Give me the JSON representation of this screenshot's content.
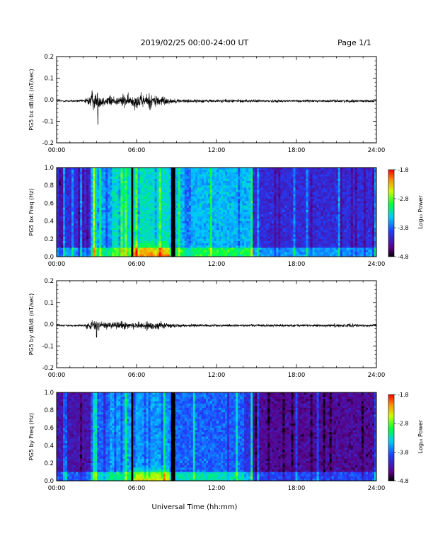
{
  "header": {
    "title": "2019/02/25  00:00-24:00 UT",
    "page": "Page 1/1"
  },
  "xaxis_title": "Universal Time (hh:mm)",
  "colorbar": {
    "label": "Log₁₀ Power",
    "ticks": [
      "-1.8",
      "-2.8",
      "-3.8",
      "-4.8"
    ]
  },
  "chart_data": [
    {
      "type": "line",
      "name": "bx_waveform",
      "ylabel": "PG5 bx dB/dt (nT/sec)",
      "xlim": [
        0,
        24
      ],
      "ylim": [
        -0.2,
        0.2
      ],
      "xticks": [
        "00:00",
        "06:00",
        "12:00",
        "18:00",
        "24:00"
      ],
      "yticks": [
        "0.2",
        "0.1",
        "0.0",
        "-0.1",
        "-0.2"
      ],
      "x_hours": [
        0,
        1,
        2,
        2.5,
        2.6,
        2.7,
        2.8,
        3.0,
        3.2,
        3.4,
        3.6,
        3.8,
        4.0,
        4.5,
        5.0,
        5.5,
        6.0,
        6.5,
        7.0,
        7.5,
        8.0,
        8.5,
        9,
        10,
        11,
        12,
        13,
        14,
        15,
        16,
        17,
        18,
        19,
        20,
        21,
        22,
        23,
        24
      ],
      "y_envelope": [
        0.004,
        0.005,
        0.006,
        0.03,
        0.055,
        0.06,
        0.035,
        0.05,
        0.03,
        0.035,
        0.02,
        0.025,
        0.03,
        0.02,
        0.035,
        0.025,
        0.04,
        0.03,
        0.04,
        0.03,
        0.025,
        0.012,
        0.01,
        0.008,
        0.008,
        0.007,
        0.008,
        0.007,
        0.007,
        0.006,
        0.006,
        0.006,
        0.006,
        0.006,
        0.006,
        0.007,
        0.006,
        0.005
      ],
      "notable_minimum": {
        "x_hours": 3.1,
        "y": -0.115
      }
    },
    {
      "type": "heatmap",
      "name": "bx_spectrogram",
      "ylabel": "PG5 bx Freq (Hz)",
      "xlim": [
        0,
        24
      ],
      "ylim": [
        0.0,
        1.0
      ],
      "xticks": [
        "00:00",
        "06:00",
        "12:00",
        "18:00",
        "24:00"
      ],
      "yticks": [
        "1.0",
        "0.8",
        "0.6",
        "0.4",
        "0.2",
        "0.0"
      ],
      "zlim": [
        -4.8,
        -1.8
      ],
      "data_gaps_hours": [
        [
          5.6,
          5.75
        ],
        [
          8.6,
          8.9
        ]
      ],
      "regions": [
        {
          "x_hours": [
            0,
            2.5
          ],
          "level": -4.1
        },
        {
          "x_hours": [
            2.5,
            4.0
          ],
          "level": -3.6
        },
        {
          "x_hours": [
            4.0,
            8.5
          ],
          "level": -3.3
        },
        {
          "x_hours": [
            8.5,
            14.8
          ],
          "level": -3.5
        },
        {
          "x_hours": [
            14.8,
            24
          ],
          "level": -4.1
        }
      ]
    },
    {
      "type": "line",
      "name": "by_waveform",
      "ylabel": "PG5 by dB/dt (nT/sec)",
      "xlim": [
        0,
        24
      ],
      "ylim": [
        -0.2,
        0.2
      ],
      "xticks": [
        "00:00",
        "06:00",
        "12:00",
        "18:00",
        "24:00"
      ],
      "yticks": [
        "0.2",
        "0.1",
        "0.0",
        "-0.1",
        "-0.2"
      ],
      "x_hours": [
        0,
        1,
        2,
        2.5,
        2.7,
        3.0,
        3.2,
        3.5,
        4.0,
        4.5,
        5.0,
        5.5,
        6.0,
        6.5,
        7.0,
        7.5,
        8.0,
        8.5,
        9,
        10,
        11,
        12,
        13,
        14,
        15,
        16,
        17,
        18,
        19,
        20,
        21,
        22,
        23,
        24
      ],
      "y_envelope": [
        0.003,
        0.004,
        0.005,
        0.02,
        0.025,
        0.03,
        0.02,
        0.02,
        0.015,
        0.015,
        0.025,
        0.015,
        0.02,
        0.02,
        0.025,
        0.02,
        0.015,
        0.01,
        0.008,
        0.007,
        0.006,
        0.006,
        0.006,
        0.006,
        0.006,
        0.006,
        0.006,
        0.006,
        0.006,
        0.006,
        0.008,
        0.008,
        0.006,
        0.005
      ],
      "notable_minimum": {
        "x_hours": 3.0,
        "y": -0.06
      }
    },
    {
      "type": "heatmap",
      "name": "by_spectrogram",
      "ylabel": "PG5 by Freq (Hz)",
      "xlim": [
        0,
        24
      ],
      "ylim": [
        0.0,
        1.0
      ],
      "xticks": [
        "00:00",
        "06:00",
        "12:00",
        "18:00",
        "24:00"
      ],
      "yticks": [
        "1.0",
        "0.8",
        "0.6",
        "0.4",
        "0.2",
        "0.0"
      ],
      "zlim": [
        -4.8,
        -1.8
      ],
      "data_gaps_hours": [
        [
          5.6,
          5.75
        ],
        [
          8.6,
          8.9
        ]
      ],
      "regions": [
        {
          "x_hours": [
            0,
            2.5
          ],
          "level": -4.3
        },
        {
          "x_hours": [
            2.5,
            4.0
          ],
          "level": -3.8
        },
        {
          "x_hours": [
            4.0,
            8.5
          ],
          "level": -3.6
        },
        {
          "x_hours": [
            8.5,
            14.8
          ],
          "level": -3.8
        },
        {
          "x_hours": [
            14.8,
            24
          ],
          "level": -4.4
        }
      ]
    }
  ]
}
